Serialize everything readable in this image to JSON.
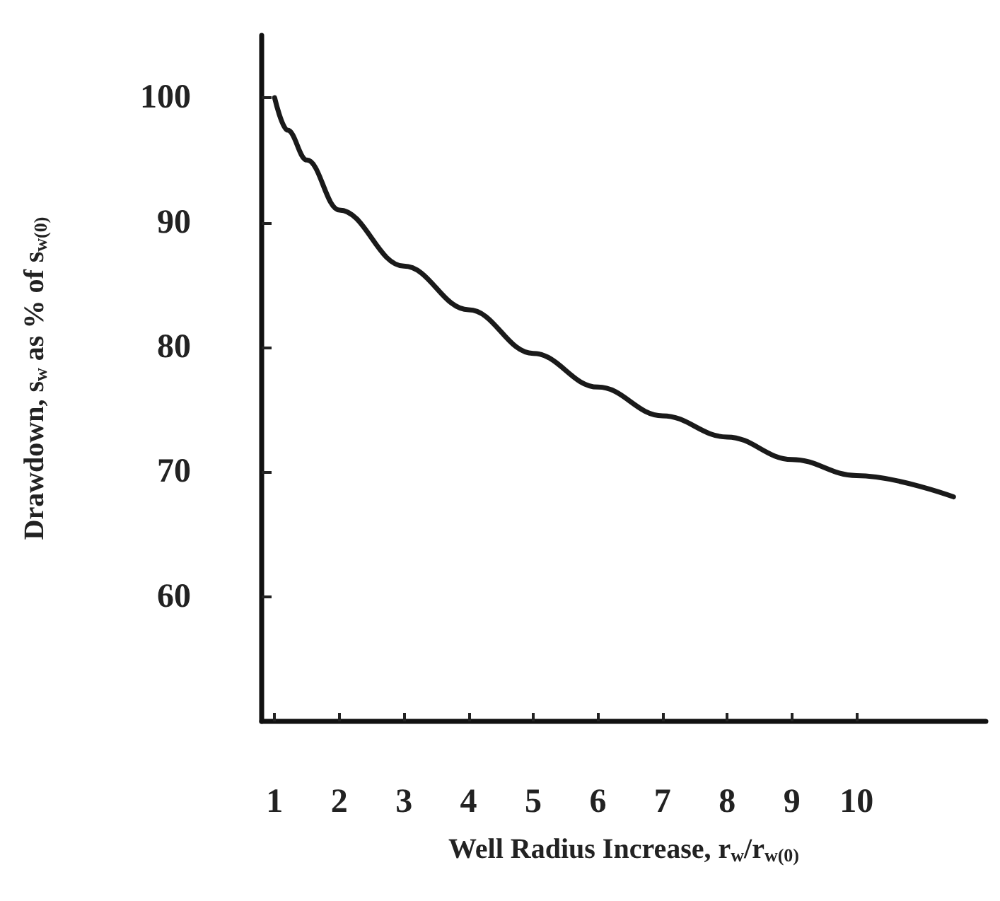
{
  "chart_data": {
    "type": "line",
    "xlabel": "Well Radius Increase, r$_{w}$/r$_{w(0)}$",
    "ylabel": "Drawdown, s$_{w}$ as % of s$_{w(0)}$",
    "series": [
      {
        "color": "#1a1a1a",
        "x": [
          1,
          1.2,
          1.5,
          2,
          3,
          4,
          5,
          6,
          7,
          8,
          9,
          10,
          11.5
        ],
        "values": [
          100,
          97.4,
          95,
          91,
          86.5,
          83,
          79.5,
          76.8,
          74.5,
          72.8,
          71,
          69.7,
          68
        ]
      }
    ],
    "xlim": [
      0.8,
      12
    ],
    "xticks": [
      1,
      2,
      3,
      4,
      5,
      6,
      7,
      8,
      9,
      10
    ],
    "ylim": [
      50,
      105
    ],
    "yticks": [
      60,
      70,
      80,
      90,
      100
    ],
    "grid": false,
    "marker": "none",
    "line_style": "solid"
  }
}
